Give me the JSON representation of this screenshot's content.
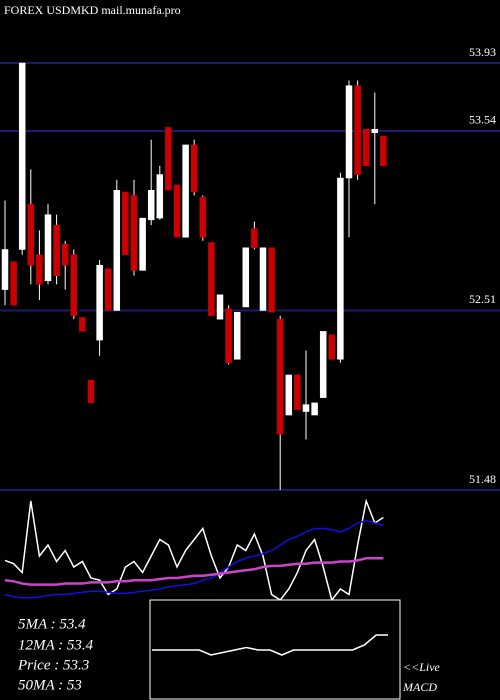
{
  "chart_data": {
    "type": "candlestick",
    "title": "FOREX  USDMKD mail.munafa.pro",
    "ylim": [
      51.48,
      53.93
    ],
    "yticks": [
      53.93,
      53.54,
      52.51,
      51.48
    ],
    "grid": true,
    "grid_color": "#1a1a70",
    "up_color": "#ffffff",
    "down_color": "#cc0000",
    "open": [
      52.63,
      52.79,
      52.86,
      53.12,
      52.83,
      52.68,
      53.0,
      52.89,
      52.83,
      52.47,
      52.11,
      52.34,
      52.75,
      52.51,
      53.19,
      53.17,
      52.74,
      53.03,
      53.04,
      53.56,
      53.23,
      52.93,
      53.46,
      53.16,
      52.9,
      52.46,
      52.52,
      52.23,
      52.53,
      52.98,
      52.51,
      52.87,
      52.46,
      51.91,
      52.14,
      51.93,
      51.91,
      52.01,
      52.37,
      52.23,
      53.27,
      53.8,
      53.55,
      53.53,
      53.51
    ],
    "high": [
      53.14,
      52.79,
      53.93,
      53.32,
      52.97,
      53.12,
      53.06,
      52.91,
      52.86,
      52.47,
      52.11,
      52.8,
      52.75,
      53.26,
      53.19,
      53.26,
      53.04,
      53.49,
      53.34,
      53.56,
      53.23,
      53.46,
      53.49,
      53.17,
      52.9,
      52.6,
      52.54,
      52.5,
      52.87,
      53.02,
      52.87,
      52.87,
      52.48,
      52.14,
      52.14,
      52.28,
      51.98,
      52.39,
      52.37,
      53.3,
      53.83,
      53.83,
      53.55,
      53.76,
      53.51
    ],
    "low": [
      52.54,
      52.54,
      52.83,
      52.66,
      52.57,
      52.66,
      52.66,
      52.63,
      52.46,
      52.39,
      51.98,
      52.25,
      52.51,
      52.51,
      52.83,
      52.71,
      52.74,
      53.0,
      53.03,
      53.2,
      52.93,
      52.93,
      53.17,
      52.91,
      52.48,
      52.46,
      52.2,
      52.23,
      52.53,
      52.86,
      52.51,
      52.5,
      51.48,
      51.91,
      51.94,
      51.77,
      51.91,
      52.01,
      52.23,
      52.21,
      52.93,
      53.26,
      53.34,
      53.12,
      53.34
    ],
    "close": [
      52.86,
      52.54,
      53.93,
      52.77,
      52.66,
      53.06,
      52.71,
      52.77,
      52.48,
      52.39,
      51.98,
      52.77,
      52.51,
      53.2,
      52.83,
      52.74,
      53.04,
      53.2,
      53.29,
      53.2,
      52.93,
      53.46,
      53.19,
      52.93,
      52.48,
      52.6,
      52.21,
      52.5,
      52.87,
      52.87,
      52.87,
      52.5,
      51.8,
      52.14,
      51.94,
      51.97,
      51.98,
      52.39,
      52.23,
      53.27,
      53.8,
      53.29,
      53.34,
      53.55,
      53.34
    ],
    "indicator": {
      "ylim": [
        0,
        100
      ],
      "series": [
        {
          "color": "#ffffff",
          "values": [
            36,
            33,
            25,
            90,
            40,
            50,
            35,
            45,
            30,
            35,
            20,
            18,
            5,
            10,
            30,
            35,
            25,
            40,
            55,
            50,
            30,
            45,
            55,
            65,
            40,
            20,
            30,
            50,
            45,
            60,
            40,
            5,
            0,
            10,
            25,
            45,
            55,
            30,
            0,
            10,
            5,
            50,
            90,
            70,
            75
          ]
        },
        {
          "color": "#1010e0",
          "values": [
            5,
            3,
            2,
            2,
            3,
            4,
            5,
            5,
            6,
            7,
            8,
            8,
            7,
            6,
            6,
            7,
            8,
            9,
            10,
            12,
            13,
            14,
            15,
            18,
            20,
            25,
            30,
            35,
            38,
            40,
            42,
            45,
            50,
            55,
            58,
            62,
            65,
            65,
            64,
            62,
            65,
            70,
            72,
            70,
            68
          ]
        },
        {
          "color": "#cc44cc",
          "values": [
            18,
            17,
            15,
            14,
            14,
            14,
            14,
            15,
            15,
            15,
            16,
            16,
            16,
            17,
            17,
            18,
            18,
            18,
            19,
            20,
            20,
            21,
            22,
            22,
            23,
            24,
            25,
            26,
            27,
            28,
            30,
            31,
            31,
            32,
            33,
            33,
            34,
            34,
            34,
            35,
            35,
            36,
            38,
            38,
            38
          ]
        }
      ]
    },
    "macd": {
      "ylim": [
        -1,
        1
      ],
      "color": "#ffffff",
      "values": [
        0,
        0,
        0,
        0,
        0,
        -0.1,
        -0.05,
        0,
        0.05,
        0,
        0,
        -0.1,
        0,
        0,
        0,
        0,
        0,
        0,
        0.1,
        0.3,
        0.3
      ]
    },
    "stats": [
      "5MA : 53.4",
      "12MA : 53.4",
      "Price   : 53.3",
      "50MA : 53"
    ],
    "live": "<<Live",
    "macd_label": "MACD"
  }
}
